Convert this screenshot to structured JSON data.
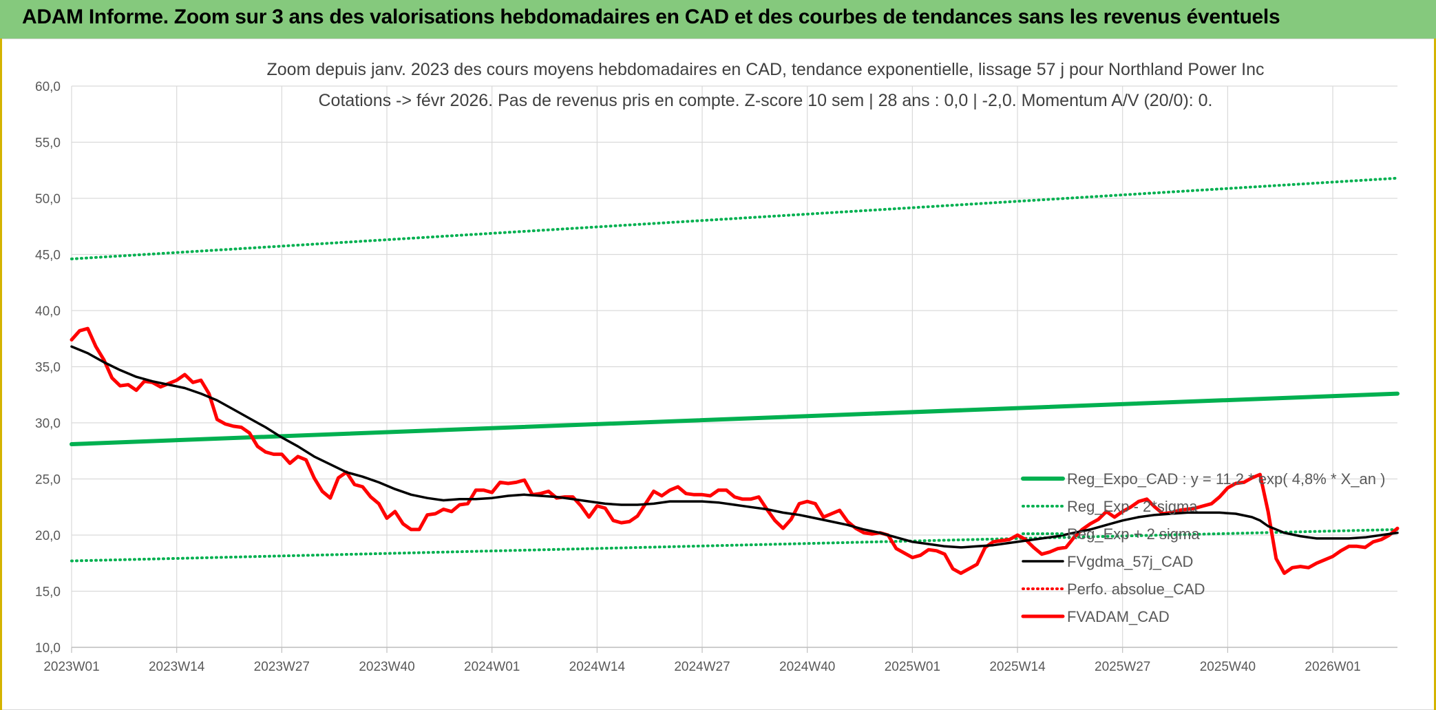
{
  "banner": {
    "title": "ADAM Informe. Zoom sur 3 ans des valorisations hebdomadaires en CAD et des courbes de tendances sans les revenus éventuels",
    "color": "#85c97d"
  },
  "chart_data": {
    "type": "line",
    "title": "Zoom depuis janv. 2023 des cours moyens hebdomadaires en CAD, tendance exponentielle, lissage 57 j pour Northland Power Inc",
    "subtitle": "Cotations -> févr 2026. Pas de revenus pris en compte. Z-score 10 sem | 28 ans : 0,0 | -2,0. Momentum A/V (20/0): 0.",
    "xlabel": "",
    "ylabel": "",
    "ylim": [
      10,
      60
    ],
    "yticks": [
      "10,0",
      "15,0",
      "20,0",
      "25,0",
      "30,0",
      "35,0",
      "40,0",
      "45,0",
      "50,0",
      "55,0",
      "60,0"
    ],
    "x_range_weeks": [
      0,
      164
    ],
    "xticks": [
      {
        "week": 0,
        "label": "2023W01"
      },
      {
        "week": 13,
        "label": "2023W14"
      },
      {
        "week": 26,
        "label": "2023W27"
      },
      {
        "week": 39,
        "label": "2023W40"
      },
      {
        "week": 52,
        "label": "2024W01"
      },
      {
        "week": 65,
        "label": "2024W14"
      },
      {
        "week": 78,
        "label": "2024W27"
      },
      {
        "week": 91,
        "label": "2024W40"
      },
      {
        "week": 104,
        "label": "2025W01"
      },
      {
        "week": 117,
        "label": "2025W14"
      },
      {
        "week": 130,
        "label": "2025W27"
      },
      {
        "week": 143,
        "label": "2025W40"
      },
      {
        "week": 156,
        "label": "2026W01"
      }
    ],
    "grid": true,
    "legend_position": "right",
    "series": [
      {
        "name": "Reg_Expo_CAD : y = 11,2 * exp( 4,8% *  X_an )",
        "color": "#00b050",
        "style": "solid-thick",
        "points": [
          [
            0,
            28.1
          ],
          [
            164,
            32.6
          ]
        ]
      },
      {
        "name": "Reg_Exp - 2*sigma",
        "color": "#00b050",
        "style": "dotted",
        "points": [
          [
            0,
            17.7
          ],
          [
            164,
            20.5
          ]
        ]
      },
      {
        "name": "Reg_Exp + 2 sigma",
        "color": "#00b050",
        "style": "dotted",
        "points": [
          [
            0,
            44.6
          ],
          [
            164,
            51.8
          ]
        ]
      },
      {
        "name": "FVgdma_57j_CAD",
        "color": "#000000",
        "style": "solid",
        "points": [
          [
            0,
            36.8
          ],
          [
            2,
            36.2
          ],
          [
            4,
            35.4
          ],
          [
            6,
            34.7
          ],
          [
            8,
            34.1
          ],
          [
            10,
            33.7
          ],
          [
            12,
            33.4
          ],
          [
            14,
            33.1
          ],
          [
            16,
            32.6
          ],
          [
            18,
            32.0
          ],
          [
            20,
            31.2
          ],
          [
            22,
            30.4
          ],
          [
            24,
            29.6
          ],
          [
            26,
            28.7
          ],
          [
            28,
            27.9
          ],
          [
            30,
            27.0
          ],
          [
            32,
            26.3
          ],
          [
            34,
            25.6
          ],
          [
            36,
            25.2
          ],
          [
            38,
            24.7
          ],
          [
            40,
            24.1
          ],
          [
            42,
            23.6
          ],
          [
            44,
            23.3
          ],
          [
            46,
            23.1
          ],
          [
            48,
            23.2
          ],
          [
            50,
            23.2
          ],
          [
            52,
            23.3
          ],
          [
            54,
            23.5
          ],
          [
            56,
            23.6
          ],
          [
            58,
            23.5
          ],
          [
            60,
            23.4
          ],
          [
            62,
            23.2
          ],
          [
            64,
            23.0
          ],
          [
            66,
            22.8
          ],
          [
            68,
            22.7
          ],
          [
            70,
            22.7
          ],
          [
            72,
            22.8
          ],
          [
            74,
            23.0
          ],
          [
            76,
            23.0
          ],
          [
            78,
            23.0
          ],
          [
            80,
            22.9
          ],
          [
            82,
            22.7
          ],
          [
            84,
            22.5
          ],
          [
            86,
            22.3
          ],
          [
            88,
            22.0
          ],
          [
            90,
            21.8
          ],
          [
            92,
            21.5
          ],
          [
            94,
            21.2
          ],
          [
            96,
            20.9
          ],
          [
            98,
            20.5
          ],
          [
            100,
            20.2
          ],
          [
            102,
            19.8
          ],
          [
            104,
            19.4
          ],
          [
            106,
            19.2
          ],
          [
            108,
            19.0
          ],
          [
            110,
            18.9
          ],
          [
            112,
            19.0
          ],
          [
            114,
            19.1
          ],
          [
            116,
            19.3
          ],
          [
            118,
            19.5
          ],
          [
            120,
            19.7
          ],
          [
            122,
            19.9
          ],
          [
            124,
            20.2
          ],
          [
            126,
            20.5
          ],
          [
            128,
            20.9
          ],
          [
            130,
            21.3
          ],
          [
            132,
            21.6
          ],
          [
            134,
            21.8
          ],
          [
            136,
            21.9
          ],
          [
            138,
            22.0
          ],
          [
            140,
            22.0
          ],
          [
            142,
            22.0
          ],
          [
            144,
            21.9
          ],
          [
            146,
            21.6
          ],
          [
            147,
            21.3
          ],
          [
            148,
            20.8
          ],
          [
            150,
            20.2
          ],
          [
            152,
            19.9
          ],
          [
            154,
            19.7
          ],
          [
            156,
            19.7
          ],
          [
            158,
            19.7
          ],
          [
            160,
            19.8
          ],
          [
            162,
            20.0
          ],
          [
            164,
            20.2
          ]
        ]
      },
      {
        "name": "Perfo. absolue_CAD",
        "color": "#ff0000",
        "style": "dotted",
        "points": []
      },
      {
        "name": "FVADAM_CAD",
        "color": "#ff0000",
        "style": "solid-thick",
        "points": [
          [
            0,
            37.4
          ],
          [
            1,
            38.2
          ],
          [
            2,
            38.4
          ],
          [
            3,
            36.8
          ],
          [
            4,
            35.6
          ],
          [
            5,
            34.0
          ],
          [
            6,
            33.3
          ],
          [
            7,
            33.4
          ],
          [
            8,
            32.9
          ],
          [
            9,
            33.7
          ],
          [
            10,
            33.6
          ],
          [
            11,
            33.2
          ],
          [
            12,
            33.5
          ],
          [
            13,
            33.8
          ],
          [
            14,
            34.3
          ],
          [
            15,
            33.6
          ],
          [
            16,
            33.8
          ],
          [
            17,
            32.6
          ],
          [
            18,
            30.3
          ],
          [
            19,
            29.9
          ],
          [
            20,
            29.7
          ],
          [
            21,
            29.6
          ],
          [
            22,
            29.1
          ],
          [
            23,
            27.9
          ],
          [
            24,
            27.4
          ],
          [
            25,
            27.2
          ],
          [
            26,
            27.2
          ],
          [
            27,
            26.4
          ],
          [
            28,
            27.0
          ],
          [
            29,
            26.7
          ],
          [
            30,
            25.1
          ],
          [
            31,
            23.9
          ],
          [
            32,
            23.3
          ],
          [
            33,
            25.1
          ],
          [
            34,
            25.6
          ],
          [
            35,
            24.5
          ],
          [
            36,
            24.3
          ],
          [
            37,
            23.4
          ],
          [
            38,
            22.8
          ],
          [
            39,
            21.5
          ],
          [
            40,
            22.1
          ],
          [
            41,
            21.0
          ],
          [
            42,
            20.5
          ],
          [
            43,
            20.5
          ],
          [
            44,
            21.8
          ],
          [
            45,
            21.9
          ],
          [
            46,
            22.3
          ],
          [
            47,
            22.1
          ],
          [
            48,
            22.7
          ],
          [
            49,
            22.8
          ],
          [
            50,
            24.0
          ],
          [
            51,
            24.0
          ],
          [
            52,
            23.8
          ],
          [
            53,
            24.7
          ],
          [
            54,
            24.6
          ],
          [
            55,
            24.7
          ],
          [
            56,
            24.9
          ],
          [
            57,
            23.6
          ],
          [
            58,
            23.7
          ],
          [
            59,
            23.9
          ],
          [
            60,
            23.3
          ],
          [
            61,
            23.4
          ],
          [
            62,
            23.4
          ],
          [
            63,
            22.6
          ],
          [
            64,
            21.6
          ],
          [
            65,
            22.6
          ],
          [
            66,
            22.4
          ],
          [
            67,
            21.3
          ],
          [
            68,
            21.1
          ],
          [
            69,
            21.2
          ],
          [
            70,
            21.7
          ],
          [
            71,
            22.8
          ],
          [
            72,
            23.9
          ],
          [
            73,
            23.5
          ],
          [
            74,
            24.0
          ],
          [
            75,
            24.3
          ],
          [
            76,
            23.7
          ],
          [
            77,
            23.6
          ],
          [
            78,
            23.6
          ],
          [
            79,
            23.5
          ],
          [
            80,
            24.0
          ],
          [
            81,
            24.0
          ],
          [
            82,
            23.4
          ],
          [
            83,
            23.2
          ],
          [
            84,
            23.2
          ],
          [
            85,
            23.4
          ],
          [
            86,
            22.3
          ],
          [
            87,
            21.3
          ],
          [
            88,
            20.6
          ],
          [
            89,
            21.4
          ],
          [
            90,
            22.8
          ],
          [
            91,
            23.0
          ],
          [
            92,
            22.8
          ],
          [
            93,
            21.6
          ],
          [
            94,
            21.9
          ],
          [
            95,
            22.2
          ],
          [
            96,
            21.2
          ],
          [
            97,
            20.6
          ],
          [
            98,
            20.2
          ],
          [
            99,
            20.1
          ],
          [
            100,
            20.2
          ],
          [
            101,
            20.0
          ],
          [
            102,
            18.8
          ],
          [
            103,
            18.4
          ],
          [
            104,
            18.0
          ],
          [
            105,
            18.2
          ],
          [
            106,
            18.7
          ],
          [
            107,
            18.6
          ],
          [
            108,
            18.3
          ],
          [
            109,
            17.0
          ],
          [
            110,
            16.6
          ],
          [
            111,
            17.0
          ],
          [
            112,
            17.4
          ],
          [
            113,
            18.9
          ],
          [
            114,
            19.4
          ],
          [
            115,
            19.5
          ],
          [
            116,
            19.6
          ],
          [
            117,
            20.0
          ],
          [
            118,
            19.6
          ],
          [
            119,
            18.9
          ],
          [
            120,
            18.3
          ],
          [
            121,
            18.5
          ],
          [
            122,
            18.8
          ],
          [
            123,
            18.9
          ],
          [
            124,
            19.8
          ],
          [
            125,
            20.5
          ],
          [
            126,
            21.0
          ],
          [
            127,
            21.4
          ],
          [
            128,
            22.1
          ],
          [
            129,
            21.6
          ],
          [
            130,
            22.1
          ],
          [
            131,
            22.5
          ],
          [
            132,
            23.0
          ],
          [
            133,
            23.2
          ],
          [
            134,
            22.5
          ],
          [
            135,
            21.9
          ],
          [
            136,
            22.0
          ],
          [
            137,
            22.2
          ],
          [
            138,
            22.3
          ],
          [
            139,
            22.4
          ],
          [
            140,
            22.6
          ],
          [
            141,
            22.8
          ],
          [
            142,
            23.4
          ],
          [
            143,
            24.2
          ],
          [
            144,
            24.6
          ],
          [
            145,
            24.7
          ],
          [
            146,
            25.1
          ],
          [
            147,
            25.4
          ],
          [
            148,
            22.1
          ],
          [
            149,
            17.9
          ],
          [
            150,
            16.6
          ],
          [
            151,
            17.1
          ],
          [
            152,
            17.2
          ],
          [
            153,
            17.1
          ],
          [
            154,
            17.5
          ],
          [
            155,
            17.8
          ],
          [
            156,
            18.1
          ],
          [
            157,
            18.6
          ],
          [
            158,
            19.0
          ],
          [
            159,
            19.0
          ],
          [
            160,
            18.9
          ],
          [
            161,
            19.4
          ],
          [
            162,
            19.6
          ],
          [
            163,
            20.0
          ],
          [
            164,
            20.6
          ]
        ]
      }
    ]
  }
}
